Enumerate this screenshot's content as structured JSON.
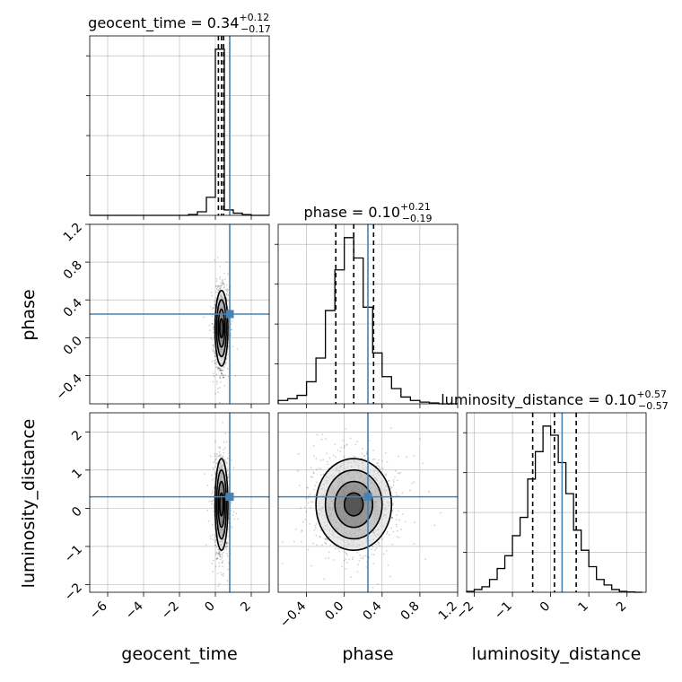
{
  "figure": {
    "type": "corner"
  },
  "colors": {
    "truth": "#4682b4",
    "hist": "#000000",
    "grid": "#b0b0b0",
    "points": "#000000"
  },
  "titles": {
    "geocent_time": {
      "base": "geocent_time = 0.34",
      "sup": "+0.12",
      "sub": "−0.17"
    },
    "phase": {
      "base": "phase = 0.10",
      "sup": "+0.21",
      "sub": "−0.19"
    },
    "luminosity_distance": {
      "base": "luminosity_distance = 0.10",
      "sup": "+0.57",
      "sub": "−0.57"
    }
  },
  "axis_labels": {
    "geocent_time": "geocent_time",
    "phase": "phase",
    "luminosity_distance": "luminosity_distance"
  },
  "ticks": {
    "geocent_time": [
      "−6",
      "−4",
      "−2",
      "0",
      "2"
    ],
    "phase": [
      "−0.4",
      "0.0",
      "0.4",
      "0.8",
      "1.2"
    ],
    "luminosity_distance": [
      "−2",
      "−1",
      "0",
      "1",
      "2"
    ]
  },
  "chart_data": [
    {
      "type": "histogram",
      "parameter": "geocent_time",
      "xlim": [
        -7,
        3
      ],
      "bin_edges": [
        -7,
        -6.5,
        -6,
        -5.5,
        -5,
        -4.5,
        -4,
        -3.5,
        -3,
        -2.5,
        -2,
        -1.5,
        -1,
        -0.5,
        0,
        0.5,
        1,
        1.5,
        2,
        2.5,
        3
      ],
      "counts": [
        0,
        0,
        0,
        0,
        0,
        0,
        0,
        0,
        0,
        0,
        0,
        0.005,
        0.02,
        0.1,
        0.92,
        0.03,
        0.012,
        0.004,
        0,
        0
      ],
      "median": 0.34,
      "quantiles": [
        0.17,
        0.46
      ],
      "truth": 0.8
    },
    {
      "type": "histogram",
      "parameter": "phase",
      "xlim": [
        -0.7,
        1.2
      ],
      "bin_edges": [
        -0.7,
        -0.6,
        -0.5,
        -0.4,
        -0.3,
        -0.2,
        -0.1,
        0.0,
        0.1,
        0.2,
        0.3,
        0.4,
        0.5,
        0.6,
        0.7,
        0.8,
        0.9,
        1.0,
        1.1,
        1.2
      ],
      "counts": [
        0.02,
        0.03,
        0.05,
        0.13,
        0.27,
        0.55,
        0.79,
        0.98,
        0.86,
        0.57,
        0.3,
        0.16,
        0.09,
        0.04,
        0.02,
        0.01,
        0.005,
        0,
        0
      ],
      "median": 0.1,
      "quantiles": [
        -0.09,
        0.31
      ],
      "truth": 0.25
    },
    {
      "type": "histogram",
      "parameter": "luminosity_distance",
      "xlim": [
        -2.2,
        2.5
      ],
      "bin_edges": [
        -2.2,
        -2.0,
        -1.8,
        -1.6,
        -1.4,
        -1.2,
        -1.0,
        -0.8,
        -0.6,
        -0.4,
        -0.2,
        0.0,
        0.2,
        0.4,
        0.6,
        0.8,
        1.0,
        1.2,
        1.4,
        1.6,
        1.8,
        2.0,
        2.2,
        2.4
      ],
      "counts": [
        0.005,
        0.015,
        0.03,
        0.07,
        0.13,
        0.2,
        0.31,
        0.41,
        0.62,
        0.77,
        0.91,
        0.86,
        0.71,
        0.54,
        0.34,
        0.23,
        0.14,
        0.07,
        0.04,
        0.015,
        0.005,
        0.002,
        0
      ],
      "median": 0.1,
      "quantiles": [
        -0.47,
        0.67
      ],
      "truth": 0.3
    },
    {
      "type": "scatter_contour",
      "x_parameter": "geocent_time",
      "y_parameter": "phase",
      "xlim": [
        -7,
        3
      ],
      "ylim": [
        -0.7,
        1.2
      ],
      "center": [
        0.34,
        0.1
      ],
      "spread": [
        0.18,
        0.2
      ],
      "contour_sigmas": [
        0.5,
        1.0,
        1.5,
        2.0
      ],
      "truth": [
        0.8,
        0.25
      ]
    },
    {
      "type": "scatter_contour",
      "x_parameter": "geocent_time",
      "y_parameter": "luminosity_distance",
      "xlim": [
        -7,
        3
      ],
      "ylim": [
        -2.2,
        2.5
      ],
      "center": [
        0.34,
        0.1
      ],
      "spread": [
        0.18,
        0.6
      ],
      "contour_sigmas": [
        0.5,
        1.0,
        1.5,
        2.0
      ],
      "truth": [
        0.8,
        0.3
      ]
    },
    {
      "type": "scatter_contour",
      "x_parameter": "phase",
      "y_parameter": "luminosity_distance",
      "xlim": [
        -0.7,
        1.2
      ],
      "ylim": [
        -2.2,
        2.5
      ],
      "center": [
        0.1,
        0.1
      ],
      "spread": [
        0.2,
        0.6
      ],
      "contour_sigmas": [
        0.5,
        1.0,
        1.5,
        2.0
      ],
      "truth": [
        0.25,
        0.3
      ]
    }
  ]
}
